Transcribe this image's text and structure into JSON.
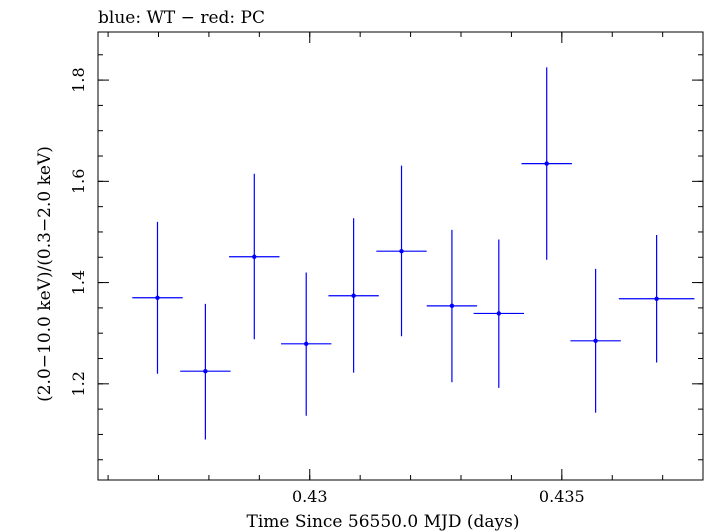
{
  "chart_data": {
    "type": "scatter",
    "title": "blue: WT − red: PC",
    "xlabel": "Time Since 56550.0 MJD (days)",
    "ylabel": "(2.0−10.0 keV)/(0.3−2.0 keV)",
    "xlim": [
      0.4258,
      0.4378
    ],
    "ylim": [
      1.01,
      1.895
    ],
    "x_ticks": [
      {
        "value": 0.43,
        "label": "0.43"
      },
      {
        "value": 0.435,
        "label": "0.435"
      }
    ],
    "y_ticks": [
      {
        "value": 1.2,
        "label": "1.2"
      },
      {
        "value": 1.4,
        "label": "1.4"
      },
      {
        "value": 1.6,
        "label": "1.6"
      },
      {
        "value": 1.8,
        "label": "1.8"
      }
    ],
    "x_minor_step": 0.001,
    "y_minor_step": 0.05,
    "grid": false,
    "series": [
      {
        "color": "#0000ff",
        "points": [
          {
            "x": 0.42698,
            "xerr": 0.0005,
            "y": 1.37,
            "yerr_low": 0.15,
            "yerr_high": 0.15
          },
          {
            "x": 0.42793,
            "xerr": 0.0005,
            "y": 1.225,
            "yerr_low": 0.135,
            "yerr_high": 0.133
          },
          {
            "x": 0.4289,
            "xerr": 0.0005,
            "y": 1.451,
            "yerr_low": 0.163,
            "yerr_high": 0.164
          },
          {
            "x": 0.42993,
            "xerr": 0.0005,
            "y": 1.279,
            "yerr_low": 0.142,
            "yerr_high": 0.141
          },
          {
            "x": 0.43087,
            "xerr": 0.0005,
            "y": 1.374,
            "yerr_low": 0.152,
            "yerr_high": 0.153
          },
          {
            "x": 0.43182,
            "xerr": 0.0005,
            "y": 1.462,
            "yerr_low": 0.168,
            "yerr_high": 0.169
          },
          {
            "x": 0.43282,
            "xerr": 0.0005,
            "y": 1.354,
            "yerr_low": 0.151,
            "yerr_high": 0.15
          },
          {
            "x": 0.43375,
            "xerr": 0.0005,
            "y": 1.339,
            "yerr_low": 0.147,
            "yerr_high": 0.146
          },
          {
            "x": 0.4347,
            "xerr": 0.0005,
            "y": 1.635,
            "yerr_low": 0.19,
            "yerr_high": 0.19
          },
          {
            "x": 0.43567,
            "xerr": 0.0005,
            "y": 1.285,
            "yerr_low": 0.142,
            "yerr_high": 0.142
          },
          {
            "x": 0.43688,
            "xerr": 0.00075,
            "y": 1.368,
            "yerr_low": 0.126,
            "yerr_high": 0.126
          }
        ]
      }
    ]
  }
}
